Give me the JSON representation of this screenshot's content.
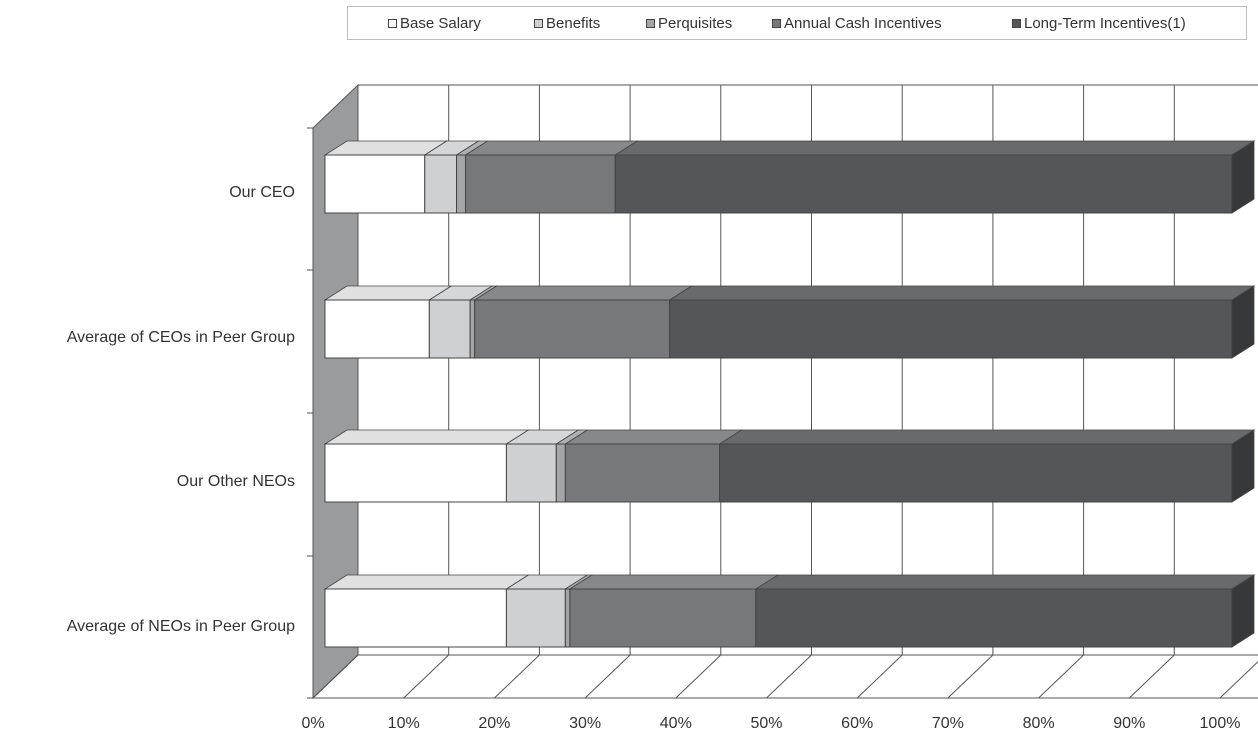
{
  "chart_data": {
    "type": "bar",
    "orientation": "horizontal",
    "stacked": "percent",
    "three_d": true,
    "categories": [
      "Our CEO",
      "Average of CEOs in Peer Group",
      "Our Other NEOs",
      "Average of NEOs in Peer Group"
    ],
    "series": [
      {
        "name": "Base Salary",
        "color": "#ffffff",
        "values": [
          11,
          11.5,
          20,
          20
        ]
      },
      {
        "name": "Benefits",
        "color": "#cfd0d2",
        "values": [
          3.5,
          4.5,
          5.5,
          6.5
        ]
      },
      {
        "name": "Perquisites",
        "color": "#a4a5a7",
        "values": [
          1,
          0.5,
          1,
          0.5
        ]
      },
      {
        "name": "Annual Cash Incentives",
        "color": "#77787a",
        "values": [
          16.5,
          21.5,
          17,
          20.5
        ]
      },
      {
        "name": "Long-Term Incentives(1)",
        "color": "#555658",
        "values": [
          68,
          62,
          56.5,
          52.5
        ]
      }
    ],
    "xlim": [
      0,
      100
    ],
    "x_ticks": [
      "0%",
      "10%",
      "20%",
      "30%",
      "40%",
      "50%",
      "60%",
      "70%",
      "80%",
      "90%",
      "100%"
    ],
    "grid": true,
    "legend": "top"
  }
}
